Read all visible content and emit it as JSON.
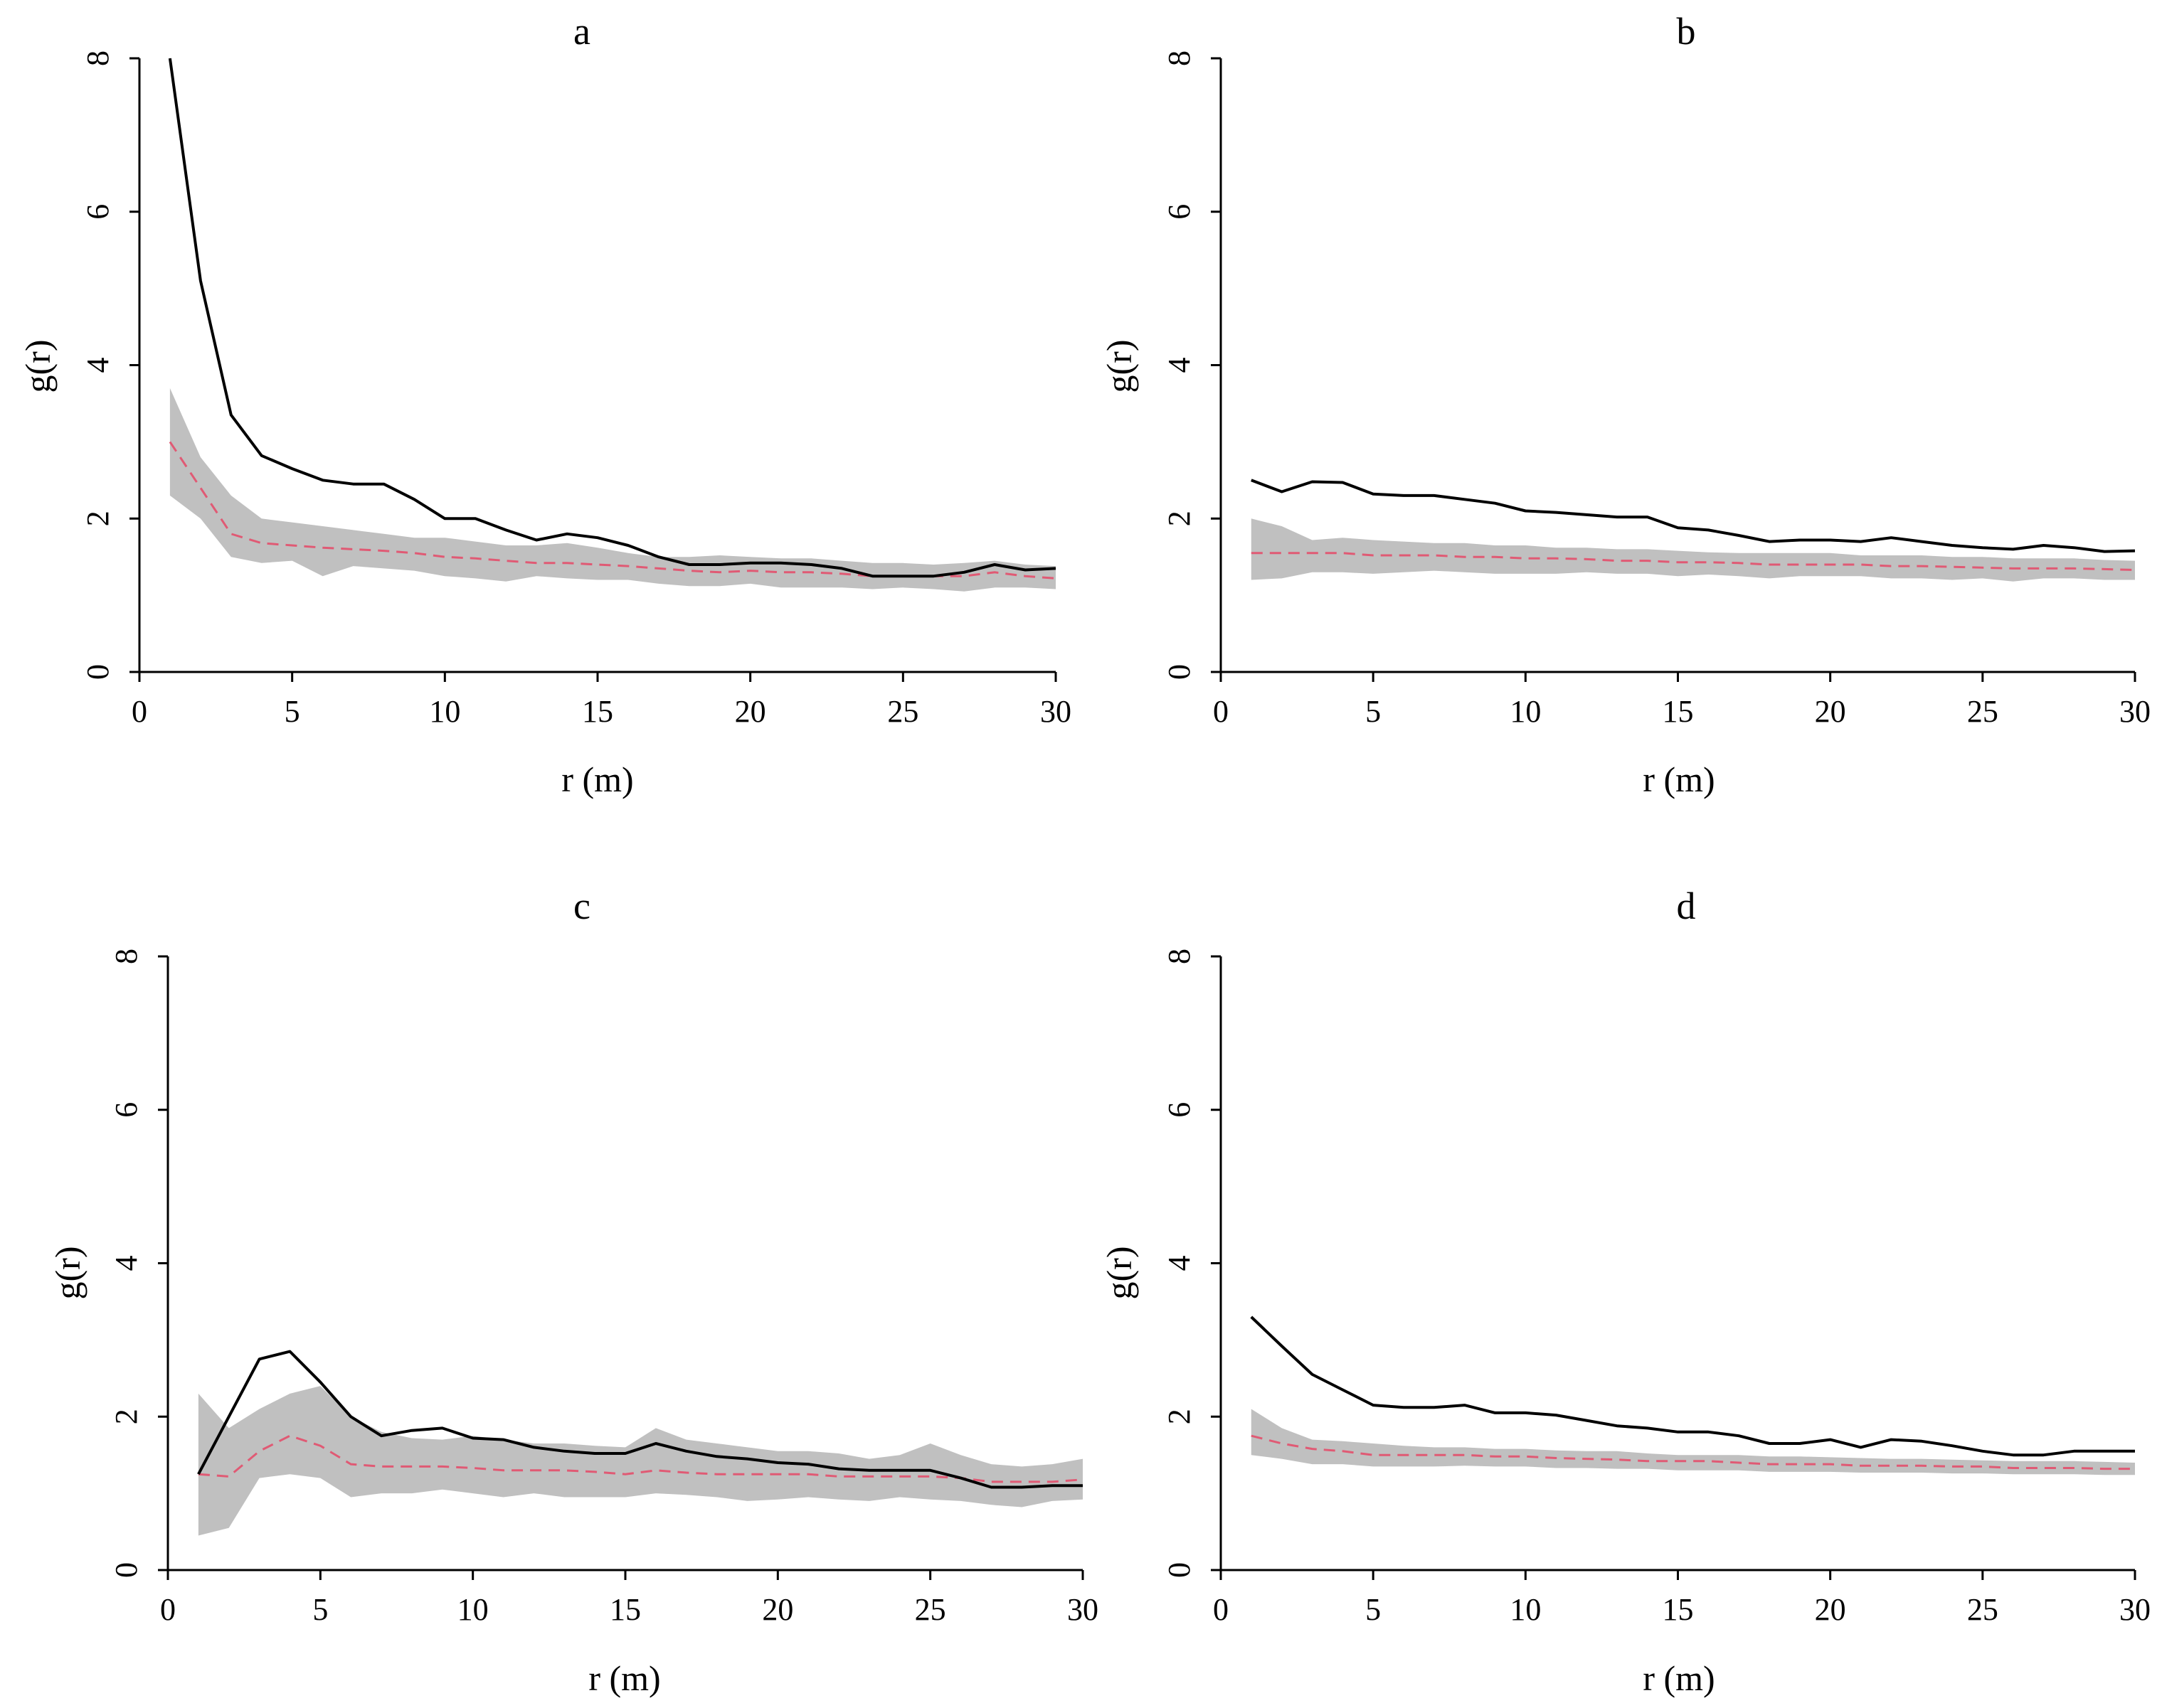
{
  "figure": {
    "colors": {
      "observed": "#000000",
      "envelope": "#c0c0c0",
      "expected": "#e05a74",
      "axis": "#000000"
    }
  },
  "chart_data": [
    {
      "type": "line",
      "title": "a",
      "xlabel": "r (m)",
      "ylabel": "g(r)",
      "xlim": [
        0,
        30
      ],
      "ylim": [
        0,
        8
      ],
      "xticks": [
        0,
        5,
        10,
        15,
        20,
        25,
        30
      ],
      "xtick_labels": [
        "0",
        "5",
        "10",
        "15",
        "20",
        "25",
        "30"
      ],
      "yticks": [
        0,
        2,
        4,
        6,
        8
      ],
      "ytick_labels": [
        "0",
        "2",
        "4",
        "6",
        "8"
      ],
      "x": [
        1,
        2,
        3,
        4,
        5,
        6,
        7,
        8,
        9,
        10,
        11,
        12,
        13,
        14,
        15,
        16,
        17,
        18,
        19,
        20,
        21,
        22,
        23,
        24,
        25,
        26,
        27,
        28,
        29,
        30
      ],
      "series": [
        {
          "name": "observed",
          "style": "solid",
          "values": [
            8.0,
            5.1,
            3.35,
            2.82,
            2.65,
            2.5,
            2.45,
            2.45,
            2.25,
            2.0,
            2.0,
            1.85,
            1.72,
            1.8,
            1.75,
            1.65,
            1.5,
            1.4,
            1.4,
            1.42,
            1.42,
            1.4,
            1.35,
            1.25,
            1.25,
            1.25,
            1.3,
            1.4,
            1.33,
            1.35
          ]
        },
        {
          "name": "expected",
          "style": "dashed",
          "values": [
            3.0,
            2.4,
            1.8,
            1.68,
            1.65,
            1.62,
            1.6,
            1.58,
            1.55,
            1.5,
            1.48,
            1.45,
            1.42,
            1.42,
            1.4,
            1.38,
            1.35,
            1.32,
            1.3,
            1.32,
            1.3,
            1.3,
            1.28,
            1.25,
            1.25,
            1.25,
            1.25,
            1.3,
            1.25,
            1.22
          ]
        },
        {
          "name": "envelope_upper",
          "style": "fill",
          "values": [
            3.7,
            2.8,
            2.3,
            2.0,
            1.95,
            1.9,
            1.85,
            1.8,
            1.75,
            1.75,
            1.7,
            1.65,
            1.65,
            1.68,
            1.62,
            1.55,
            1.5,
            1.5,
            1.52,
            1.5,
            1.48,
            1.48,
            1.45,
            1.42,
            1.42,
            1.4,
            1.42,
            1.45,
            1.4,
            1.38
          ]
        },
        {
          "name": "envelope_lower",
          "style": "fill",
          "values": [
            2.3,
            2.0,
            1.5,
            1.42,
            1.45,
            1.25,
            1.38,
            1.35,
            1.32,
            1.25,
            1.22,
            1.18,
            1.25,
            1.22,
            1.2,
            1.2,
            1.15,
            1.12,
            1.12,
            1.15,
            1.1,
            1.1,
            1.1,
            1.08,
            1.1,
            1.08,
            1.05,
            1.1,
            1.1,
            1.08
          ]
        }
      ]
    },
    {
      "type": "line",
      "title": "b",
      "xlabel": "r (m)",
      "ylabel": "g(r)",
      "xlim": [
        0,
        30
      ],
      "ylim": [
        0,
        8
      ],
      "xticks": [
        0,
        5,
        10,
        15,
        20,
        25,
        30
      ],
      "xtick_labels": [
        "0",
        "5",
        "10",
        "15",
        "20",
        "25",
        "30"
      ],
      "yticks": [
        0,
        2,
        4,
        6,
        8
      ],
      "ytick_labels": [
        "0",
        "2",
        "4",
        "6",
        "8"
      ],
      "x": [
        1,
        2,
        3,
        4,
        5,
        6,
        7,
        8,
        9,
        10,
        11,
        12,
        13,
        14,
        15,
        16,
        17,
        18,
        19,
        20,
        21,
        22,
        23,
        24,
        25,
        26,
        27,
        28,
        29,
        30
      ],
      "series": [
        {
          "name": "observed",
          "style": "solid",
          "values": [
            2.5,
            2.35,
            2.48,
            2.47,
            2.32,
            2.3,
            2.3,
            2.25,
            2.2,
            2.1,
            2.08,
            2.05,
            2.02,
            2.02,
            1.88,
            1.85,
            1.78,
            1.7,
            1.72,
            1.72,
            1.7,
            1.75,
            1.7,
            1.65,
            1.62,
            1.6,
            1.65,
            1.62,
            1.57,
            1.58
          ]
        },
        {
          "name": "expected",
          "style": "dashed",
          "values": [
            1.55,
            1.55,
            1.55,
            1.55,
            1.52,
            1.52,
            1.52,
            1.5,
            1.5,
            1.48,
            1.48,
            1.47,
            1.45,
            1.45,
            1.43,
            1.43,
            1.42,
            1.4,
            1.4,
            1.4,
            1.4,
            1.38,
            1.38,
            1.37,
            1.36,
            1.35,
            1.35,
            1.35,
            1.34,
            1.33
          ]
        },
        {
          "name": "envelope_upper",
          "style": "fill",
          "values": [
            2.0,
            1.9,
            1.72,
            1.75,
            1.72,
            1.7,
            1.68,
            1.68,
            1.65,
            1.65,
            1.62,
            1.62,
            1.6,
            1.6,
            1.58,
            1.56,
            1.55,
            1.55,
            1.55,
            1.55,
            1.52,
            1.52,
            1.52,
            1.5,
            1.5,
            1.48,
            1.48,
            1.48,
            1.46,
            1.45
          ]
        },
        {
          "name": "envelope_lower",
          "style": "fill",
          "values": [
            1.2,
            1.22,
            1.3,
            1.3,
            1.28,
            1.3,
            1.32,
            1.3,
            1.28,
            1.28,
            1.28,
            1.3,
            1.28,
            1.28,
            1.25,
            1.27,
            1.25,
            1.22,
            1.25,
            1.25,
            1.25,
            1.22,
            1.22,
            1.2,
            1.22,
            1.18,
            1.22,
            1.22,
            1.2,
            1.2
          ]
        }
      ]
    },
    {
      "type": "line",
      "title": "c",
      "xlabel": "r (m)",
      "ylabel": "g(r)",
      "xlim": [
        0,
        30
      ],
      "ylim": [
        0,
        8
      ],
      "xticks": [
        0,
        5,
        10,
        15,
        20,
        25,
        30
      ],
      "xtick_labels": [
        "0",
        "5",
        "10",
        "15",
        "20",
        "25",
        "30"
      ],
      "yticks": [
        0,
        2,
        4,
        6,
        8
      ],
      "ytick_labels": [
        "0",
        "2",
        "4",
        "6",
        "8"
      ],
      "x": [
        1,
        2,
        3,
        4,
        5,
        6,
        7,
        8,
        9,
        10,
        11,
        12,
        13,
        14,
        15,
        16,
        17,
        18,
        19,
        20,
        21,
        22,
        23,
        24,
        25,
        26,
        27,
        28,
        29,
        30
      ],
      "series": [
        {
          "name": "observed",
          "style": "solid",
          "values": [
            1.25,
            2.0,
            2.75,
            2.85,
            2.45,
            2.0,
            1.75,
            1.82,
            1.85,
            1.72,
            1.7,
            1.6,
            1.55,
            1.52,
            1.52,
            1.65,
            1.55,
            1.48,
            1.45,
            1.4,
            1.38,
            1.32,
            1.3,
            1.3,
            1.3,
            1.2,
            1.08,
            1.08,
            1.1,
            1.1
          ]
        },
        {
          "name": "expected",
          "style": "dashed",
          "values": [
            1.25,
            1.22,
            1.55,
            1.75,
            1.62,
            1.38,
            1.35,
            1.35,
            1.35,
            1.33,
            1.3,
            1.3,
            1.3,
            1.28,
            1.25,
            1.3,
            1.27,
            1.25,
            1.25,
            1.25,
            1.25,
            1.22,
            1.22,
            1.22,
            1.22,
            1.2,
            1.15,
            1.15,
            1.15,
            1.18
          ]
        },
        {
          "name": "envelope_upper",
          "style": "fill",
          "values": [
            2.3,
            1.85,
            2.1,
            2.3,
            2.4,
            2.0,
            1.8,
            1.72,
            1.7,
            1.75,
            1.7,
            1.65,
            1.65,
            1.62,
            1.6,
            1.85,
            1.7,
            1.65,
            1.6,
            1.55,
            1.55,
            1.52,
            1.45,
            1.5,
            1.65,
            1.5,
            1.38,
            1.35,
            1.38,
            1.45
          ]
        },
        {
          "name": "envelope_lower",
          "style": "fill",
          "values": [
            0.45,
            0.55,
            1.2,
            1.25,
            1.2,
            0.95,
            1.0,
            1.0,
            1.05,
            1.0,
            0.95,
            1.0,
            0.95,
            0.95,
            0.95,
            1.0,
            0.98,
            0.95,
            0.9,
            0.92,
            0.95,
            0.92,
            0.9,
            0.95,
            0.92,
            0.9,
            0.85,
            0.82,
            0.9,
            0.92
          ]
        }
      ]
    },
    {
      "type": "line",
      "title": "d",
      "xlabel": "r (m)",
      "ylabel": "g(r)",
      "xlim": [
        0,
        30
      ],
      "ylim": [
        0,
        8
      ],
      "xticks": [
        0,
        5,
        10,
        15,
        20,
        25,
        30
      ],
      "xtick_labels": [
        "0",
        "5",
        "10",
        "15",
        "20",
        "25",
        "30"
      ],
      "yticks": [
        0,
        2,
        4,
        6,
        8
      ],
      "ytick_labels": [
        "0",
        "2",
        "4",
        "6",
        "8"
      ],
      "x": [
        1,
        2,
        3,
        4,
        5,
        6,
        7,
        8,
        9,
        10,
        11,
        12,
        13,
        14,
        15,
        16,
        17,
        18,
        19,
        20,
        21,
        22,
        23,
        24,
        25,
        26,
        27,
        28,
        29,
        30
      ],
      "series": [
        {
          "name": "observed",
          "style": "solid",
          "values": [
            3.3,
            2.92,
            2.55,
            2.35,
            2.15,
            2.12,
            2.12,
            2.15,
            2.05,
            2.05,
            2.02,
            1.95,
            1.88,
            1.85,
            1.8,
            1.8,
            1.75,
            1.65,
            1.65,
            1.7,
            1.6,
            1.7,
            1.68,
            1.62,
            1.55,
            1.5,
            1.5,
            1.55,
            1.55,
            1.55
          ]
        },
        {
          "name": "expected",
          "style": "dashed",
          "values": [
            1.75,
            1.65,
            1.58,
            1.55,
            1.5,
            1.5,
            1.5,
            1.5,
            1.48,
            1.48,
            1.46,
            1.45,
            1.44,
            1.42,
            1.42,
            1.42,
            1.4,
            1.38,
            1.38,
            1.38,
            1.36,
            1.36,
            1.36,
            1.35,
            1.35,
            1.33,
            1.33,
            1.33,
            1.32,
            1.32
          ]
        },
        {
          "name": "envelope_upper",
          "style": "fill",
          "values": [
            2.1,
            1.85,
            1.7,
            1.68,
            1.65,
            1.62,
            1.6,
            1.6,
            1.58,
            1.58,
            1.56,
            1.55,
            1.55,
            1.52,
            1.5,
            1.5,
            1.5,
            1.48,
            1.48,
            1.47,
            1.46,
            1.45,
            1.45,
            1.44,
            1.43,
            1.42,
            1.42,
            1.42,
            1.41,
            1.4
          ]
        },
        {
          "name": "envelope_lower",
          "style": "fill",
          "values": [
            1.5,
            1.45,
            1.38,
            1.38,
            1.35,
            1.35,
            1.35,
            1.36,
            1.35,
            1.35,
            1.33,
            1.33,
            1.32,
            1.32,
            1.3,
            1.3,
            1.3,
            1.28,
            1.28,
            1.28,
            1.27,
            1.27,
            1.27,
            1.26,
            1.26,
            1.25,
            1.25,
            1.25,
            1.24,
            1.24
          ]
        }
      ]
    }
  ]
}
